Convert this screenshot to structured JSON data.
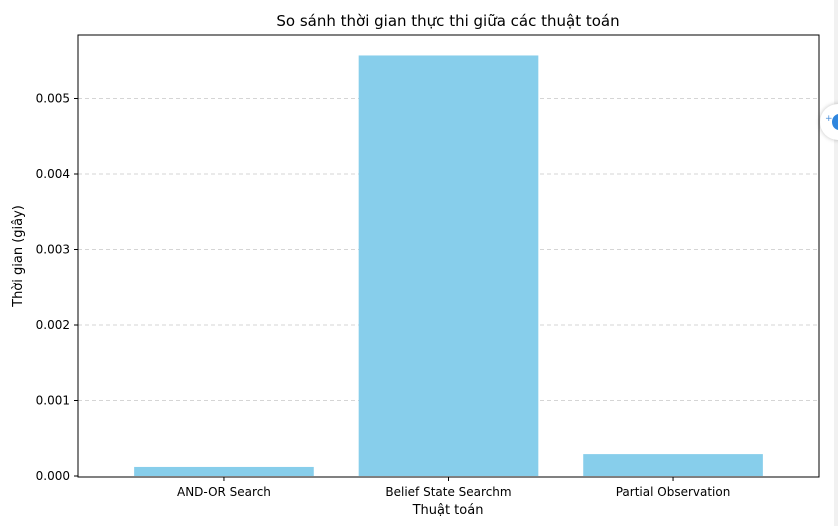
{
  "chart_data": {
    "type": "bar",
    "title": "So sánh thời gian thực thi giữa các thuật toán",
    "xlabel": "Thuật toán",
    "ylabel": "Thời gian (giây)",
    "categories": [
      "AND-OR Search",
      "Belief State Searchm",
      "Partial Observation"
    ],
    "values": [
      0.00012,
      0.00557,
      0.00029
    ],
    "ylim": [
      0,
      0.0058
    ],
    "yticks": [
      0,
      0.001,
      0.002,
      0.003,
      0.004,
      0.005
    ],
    "ytick_labels": [
      "0.000",
      "0.001",
      "0.002",
      "0.003",
      "0.004",
      "0.005"
    ],
    "bar_color": "#87ceeb",
    "grid": "y-dashed"
  },
  "widget": {
    "icon": "assistant-icon",
    "accent": "#2f86de"
  }
}
